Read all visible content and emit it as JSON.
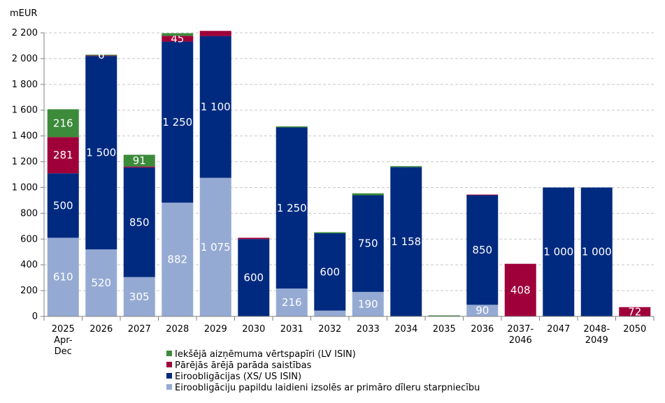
{
  "chart_data": {
    "type": "bar",
    "stacked": true,
    "unit_label": "mEUR",
    "ylim": [
      0,
      2200
    ],
    "yticks": [
      "0",
      "200",
      "400",
      "600",
      "800",
      "1 000",
      "1 200",
      "1 400",
      "1 600",
      "1 800",
      "2 000",
      "2 200"
    ],
    "categories": [
      [
        "2025",
        "Apr-",
        "Dec"
      ],
      [
        "2026"
      ],
      [
        "2027"
      ],
      [
        "2028"
      ],
      [
        "2029"
      ],
      [
        "2030"
      ],
      [
        "2031"
      ],
      [
        "2032"
      ],
      [
        "2033"
      ],
      [
        "2034"
      ],
      [
        "2035"
      ],
      [
        "2036"
      ],
      [
        "2037-",
        "2046"
      ],
      [
        "2047"
      ],
      [
        "2048-",
        "2049"
      ],
      [
        "2050"
      ]
    ],
    "series": [
      {
        "name": "Eiroobligāciju papildu laidieni izsolēs ar primāro dīleru starpniecību",
        "color": "#95aad3",
        "values": [
          610,
          520,
          305,
          882,
          1075,
          0,
          216,
          45,
          190,
          0,
          0,
          90,
          0,
          0,
          0,
          0
        ],
        "labels": [
          "610",
          "520",
          "305",
          "882",
          "1 075",
          "",
          "216",
          "",
          "190",
          "",
          "",
          "90",
          "",
          "",
          "",
          ""
        ]
      },
      {
        "name": "Eiroobligācijas (XS/ US ISIN)",
        "color": "#002a7f",
        "values": [
          500,
          1500,
          850,
          1250,
          1100,
          600,
          1250,
          600,
          750,
          1158,
          0,
          850,
          0,
          1000,
          1000,
          0
        ],
        "labels": [
          "500",
          "1 500",
          "850",
          "1 250",
          "1 100",
          "600",
          "1 250",
          "600",
          "750",
          "1 158",
          "",
          "850",
          "",
          "1 000",
          "1 000",
          ""
        ]
      },
      {
        "name": "Pārējās ārējā parāda saistības",
        "color": "#a0003a",
        "values": [
          281,
          4,
          8,
          45,
          40,
          10,
          0,
          0,
          0,
          0,
          0,
          5,
          408,
          0,
          0,
          72
        ],
        "labels": [
          "281",
          "",
          "",
          "45",
          "",
          "",
          "",
          "",
          "",
          "",
          "",
          "",
          "408",
          "",
          "",
          "72"
        ]
      },
      {
        "name": "Iekšējā aizņēmuma vērtspapīri (LV ISIN)",
        "color": "#3c8b3b",
        "values": [
          216,
          6,
          91,
          20,
          0,
          0,
          8,
          8,
          15,
          8,
          8,
          0,
          0,
          0,
          0,
          0
        ],
        "labels": [
          "216",
          "6",
          "91",
          "",
          "",
          "",
          "",
          "",
          "",
          "",
          "",
          "",
          "",
          "",
          "",
          ""
        ]
      }
    ],
    "legend_order": [
      3,
      2,
      1,
      0
    ],
    "legend_position": "bottom"
  }
}
